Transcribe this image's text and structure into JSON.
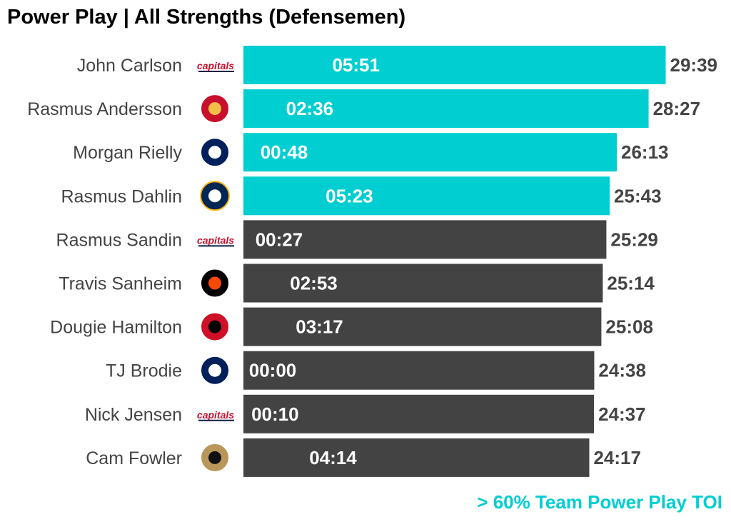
{
  "chart_data": {
    "type": "bar",
    "orientation": "horizontal",
    "title": "Power Play | All Strengths (Defensemen)",
    "caption": "> 60% Team Power Play TOI",
    "xlim": [
      0,
      30
    ],
    "unit": "minutes per game (mm:ss)",
    "colors": {
      "highlight": "#00CED1",
      "default": "#434343"
    },
    "rows": [
      {
        "player": "John Carlson",
        "team": "WSH",
        "logo": "capitals-logo",
        "toi": "29:39",
        "pp_toi": "05:51",
        "highlight": true
      },
      {
        "player": "Rasmus Andersson",
        "team": "CGY",
        "logo": "flames-logo",
        "toi": "28:27",
        "pp_toi": "02:36",
        "highlight": true
      },
      {
        "player": "Morgan Rielly",
        "team": "TOR",
        "logo": "maple-leafs-logo",
        "toi": "26:13",
        "pp_toi": "00:48",
        "highlight": true
      },
      {
        "player": "Rasmus Dahlin",
        "team": "BUF",
        "logo": "sabres-logo",
        "toi": "25:43",
        "pp_toi": "05:23",
        "highlight": true
      },
      {
        "player": "Rasmus Sandin",
        "team": "WSH",
        "logo": "capitals-logo",
        "toi": "25:29",
        "pp_toi": "00:27",
        "highlight": false
      },
      {
        "player": "Travis Sanheim",
        "team": "PHI",
        "logo": "flyers-logo",
        "toi": "25:14",
        "pp_toi": "02:53",
        "highlight": false
      },
      {
        "player": "Dougie Hamilton",
        "team": "NJD",
        "logo": "devils-logo",
        "toi": "25:08",
        "pp_toi": "03:17",
        "highlight": false
      },
      {
        "player": "TJ Brodie",
        "team": "TOR",
        "logo": "maple-leafs-logo",
        "toi": "24:38",
        "pp_toi": "00:00",
        "highlight": false
      },
      {
        "player": "Nick Jensen",
        "team": "WSH",
        "logo": "capitals-logo",
        "toi": "24:37",
        "pp_toi": "00:10",
        "highlight": false
      },
      {
        "player": "Cam Fowler",
        "team": "ANA",
        "logo": "ducks-logo",
        "toi": "24:17",
        "pp_toi": "04:14",
        "highlight": false
      }
    ]
  }
}
